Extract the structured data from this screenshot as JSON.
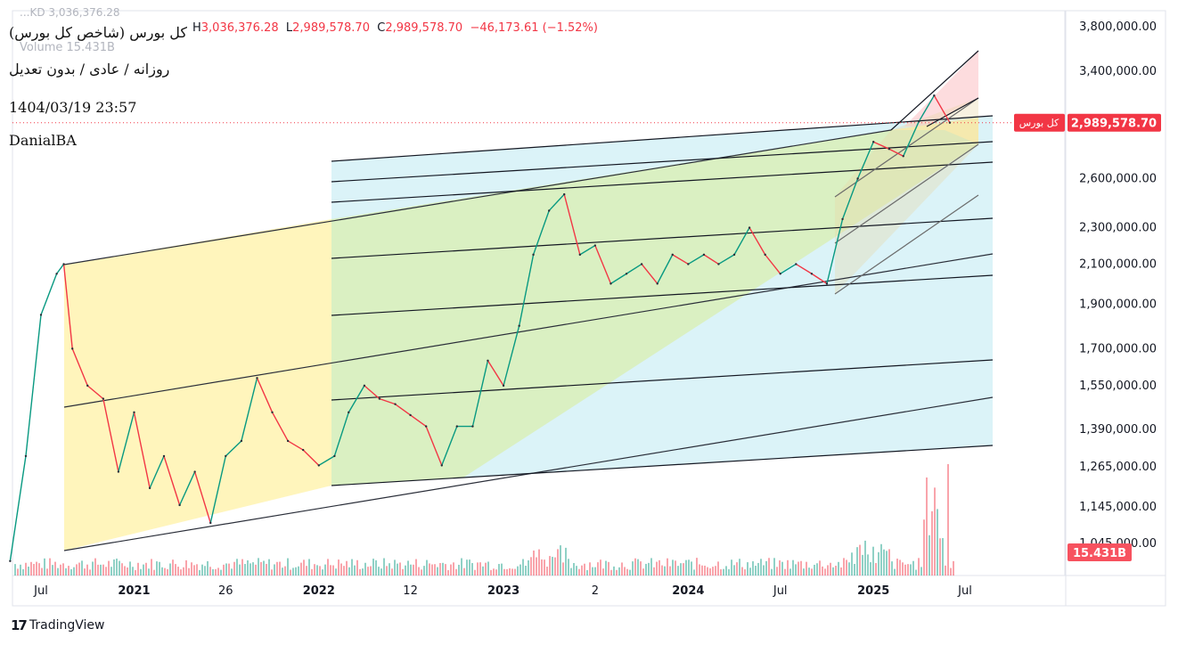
{
  "header": {
    "title": "کل بورس (شاخص کل بورس)",
    "subtitle": "روزانه / عادی / بدون تعدیل",
    "datetime": "1404/03/19 23:57",
    "author": "DanialBA",
    "ghost_legend": "...KD  3,036,376.28",
    "volume_label": "Volume",
    "volume_value": "15.431B",
    "ohlc": {
      "h_key": "H",
      "h_val": "3,036,376.28",
      "l_key": "L",
      "l_val": "2,989,578.70",
      "c_key": "C",
      "c_val": "2,989,578.70",
      "change": "−46,173.61 (−1.52%)"
    }
  },
  "price_label": {
    "name": "کل بورس",
    "value": "2,989,578.70"
  },
  "volume_badge": "15.431B",
  "logo": {
    "text": "TradingView"
  },
  "colors": {
    "up": "#089981",
    "down": "#f23645",
    "channel_yellow": "#fff3b0",
    "channel_green": "#d9efb8",
    "channel_blue": "#cfeff6",
    "channel_red": "#fcd3d6",
    "axis_text": "#131722"
  },
  "chart_data": {
    "type": "line",
    "scale": "log",
    "ylim": [
      1000000,
      3800000
    ],
    "y_ticks": [
      "3,800,000.00",
      "3,400,000.00",
      "2,600,000.00",
      "2,300,000.00",
      "2,100,000.00",
      "1,900,000.00",
      "1,700,000.00",
      "1,550,000.00",
      "1,390,000.00",
      "1,265,000.00",
      "1,145,000.00",
      "1,045,000.00"
    ],
    "y_tick_values": [
      3800000,
      3400000,
      2600000,
      2300000,
      2100000,
      1900000,
      1700000,
      1550000,
      1390000,
      1265000,
      1145000,
      1045000
    ],
    "x_ticks": [
      "Jul",
      "2021",
      "26",
      "2022",
      "12",
      "2023",
      "2",
      "2024",
      "Jul",
      "2025",
      "Jul"
    ],
    "x_tick_dates": [
      "2020-07-01",
      "2021-01-01",
      "2021-07-01",
      "2022-01-01",
      "2022-07-01",
      "2023-01-01",
      "2023-07-01",
      "2024-01-01",
      "2024-07-01",
      "2025-01-01",
      "2025-07-01"
    ],
    "series": [
      {
        "values_date": [
          "2020-05-01",
          "2020-06-01",
          "2020-07-01",
          "2020-08-01",
          "2020-08-15",
          "2020-09-01",
          "2020-10-01",
          "2020-11-01",
          "2020-12-01",
          "2021-01-01",
          "2021-02-01",
          "2021-03-01",
          "2021-04-01",
          "2021-05-01",
          "2021-06-01",
          "2021-07-01",
          "2021-08-01",
          "2021-09-01",
          "2021-10-01",
          "2021-11-01",
          "2021-12-01",
          "2022-01-01",
          "2022-02-01",
          "2022-03-01",
          "2022-04-01",
          "2022-05-01",
          "2022-06-01",
          "2022-07-01",
          "2022-08-01",
          "2022-09-01",
          "2022-10-01",
          "2022-11-01",
          "2022-12-01",
          "2023-01-01",
          "2023-02-01",
          "2023-03-01",
          "2023-04-01",
          "2023-05-01",
          "2023-06-01",
          "2023-07-01",
          "2023-08-01",
          "2023-09-01",
          "2023-10-01",
          "2023-11-01",
          "2023-12-01",
          "2024-01-01",
          "2024-02-01",
          "2024-03-01",
          "2024-04-01",
          "2024-05-01",
          "2024-06-01",
          "2024-07-01",
          "2024-08-01",
          "2024-09-01",
          "2024-10-01",
          "2024-11-01",
          "2024-12-01",
          "2025-01-01",
          "2025-02-01",
          "2025-03-01",
          "2025-04-01",
          "2025-05-01",
          "2025-06-01"
        ],
        "values": [
          1000000,
          1300000,
          1850000,
          2050000,
          2100000,
          1700000,
          1550000,
          1500000,
          1250000,
          1450000,
          1200000,
          1300000,
          1150000,
          1250000,
          1100000,
          1300000,
          1350000,
          1580000,
          1450000,
          1350000,
          1320000,
          1270000,
          1300000,
          1450000,
          1550000,
          1500000,
          1480000,
          1440000,
          1400000,
          1270000,
          1400000,
          1400000,
          1650000,
          1550000,
          1800000,
          2150000,
          2400000,
          2500000,
          2150000,
          2200000,
          2000000,
          2050000,
          2100000,
          2000000,
          2150000,
          2100000,
          2150000,
          2100000,
          2150000,
          2300000,
          2150000,
          2050000,
          2100000,
          2050000,
          2000000,
          2350000,
          2600000,
          2850000,
          2800000,
          2750000,
          3000000,
          3200000,
          2990000
        ]
      }
    ]
  }
}
